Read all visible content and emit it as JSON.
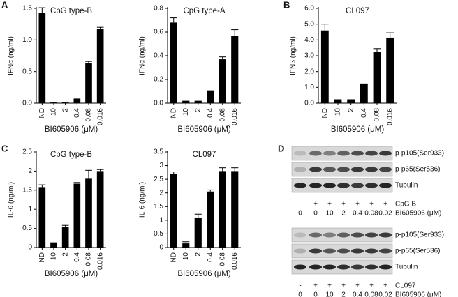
{
  "chart_data": [
    {
      "type": "bar",
      "panel": "A",
      "title": "CpG type-B",
      "ylabel": "IFNα (ng/ml)",
      "xlabel": "BI605906 (μM)",
      "categories": [
        "ND",
        "10",
        "2",
        "0.4",
        "0.08",
        "0.016"
      ],
      "values": [
        1.43,
        0.01,
        0.01,
        0.07,
        0.63,
        1.18
      ],
      "errors": [
        0.08,
        0.003,
        0.003,
        0.01,
        0.03,
        0.02
      ],
      "color": "#000000",
      "ylim": [
        0,
        1.5
      ],
      "yticks": [
        {
          "value": 0,
          "label": "0.0"
        },
        0.5,
        {
          "value": 1,
          "label": "1.0"
        },
        1.5
      ]
    },
    {
      "type": "bar",
      "title": "CpG type-A",
      "ylabel": "IFNα (ng/ml)",
      "xlabel": "BI605906 (μM)",
      "categories": [
        "ND",
        "10",
        "2",
        "0.4",
        "0.08",
        "0.016"
      ],
      "values": [
        0.68,
        0.015,
        0.015,
        0.1,
        0.37,
        0.57
      ],
      "errors": [
        0.04,
        0.002,
        0.002,
        0.005,
        0.02,
        0.05
      ],
      "color": "#000000",
      "ylim": [
        0,
        0.8
      ],
      "yticks": [
        {
          "value": 0,
          "label": "0.0"
        },
        0.2,
        0.4,
        0.6,
        0.8
      ]
    },
    {
      "type": "bar",
      "panel": "B",
      "title": "CL097",
      "ylabel": "IFNβ (ng/ml)",
      "xlabel": "BI605906 (μM)",
      "categories": [
        "ND",
        "10",
        "2",
        "0.4",
        "0.08",
        "0.016"
      ],
      "values": [
        4.6,
        0.2,
        0.2,
        1.2,
        3.25,
        4.15
      ],
      "errors": [
        0.4,
        0.02,
        0.02,
        0.02,
        0.2,
        0.3
      ],
      "color": "#000000",
      "ylim": [
        0,
        6
      ],
      "yticks": [
        {
          "value": 0,
          "label": "0.0"
        },
        {
          "value": 1,
          "label": "1.0"
        },
        {
          "value": 2,
          "label": "2.0"
        },
        {
          "value": 3,
          "label": "3.0"
        },
        {
          "value": 4,
          "label": "4.0"
        },
        {
          "value": 5,
          "label": "5.0"
        },
        {
          "value": 6,
          "label": "6.0"
        }
      ]
    },
    {
      "type": "bar",
      "panel": "C",
      "title": "CpG type-B",
      "ylabel": "IL-6 (ng/ml)",
      "xlabel": "BI605906 (μM)",
      "categories": [
        "ND",
        "10",
        "2",
        "0.4",
        "0.08",
        "0.016"
      ],
      "values": [
        1.58,
        0.12,
        0.53,
        1.67,
        1.8,
        2.0
      ],
      "errors": [
        0.06,
        0.005,
        0.05,
        0.03,
        0.22,
        0.04
      ],
      "color": "#000000",
      "ylim": [
        0,
        2.5
      ],
      "yticks": [
        0,
        0.5,
        1,
        1.5,
        2,
        2.5
      ]
    },
    {
      "type": "bar",
      "title": "CL097",
      "ylabel": "IL-6 (ng/ml)",
      "xlabel": "BI605906 (μM)",
      "categories": [
        "ND",
        "10",
        "2",
        "0.4",
        "0.08",
        "0.016"
      ],
      "values": [
        2.7,
        0.15,
        1.1,
        2.05,
        2.8,
        2.8
      ],
      "errors": [
        0.07,
        0.06,
        0.12,
        0.06,
        0.12,
        0.12
      ],
      "color": "#000000",
      "ylim": [
        0,
        3.5
      ],
      "yticks": [
        0,
        0.5,
        1,
        1.5,
        2,
        2.5,
        3,
        3.5
      ]
    }
  ],
  "blot": {
    "panel": "D",
    "groups": [
      {
        "bands": [
          "p-p105(Ser933)",
          "p-p65(Ser536)",
          "Tubulin"
        ],
        "rows": [
          {
            "values": [
              "-",
              "+",
              "+",
              "+",
              "+",
              "+",
              "+"
            ],
            "label": "CpG B"
          },
          {
            "values": [
              "0",
              "0",
              "10",
              "2",
              "0.4",
              "0.08",
              "0.02"
            ],
            "label": "BI605906 (μM)"
          }
        ]
      },
      {
        "bands": [
          "p-p105(Ser933)",
          "p-p65(Ser536)",
          "Tubulin"
        ],
        "rows": [
          {
            "values": [
              "-",
              "+",
              "+",
              "+",
              "+",
              "+",
              "+"
            ],
            "label": "CL097"
          },
          {
            "values": [
              "0",
              "0",
              "10",
              "2",
              "0.4",
              "0.08",
              "0.02"
            ],
            "label": "BI605906 (μM)"
          }
        ]
      }
    ]
  }
}
